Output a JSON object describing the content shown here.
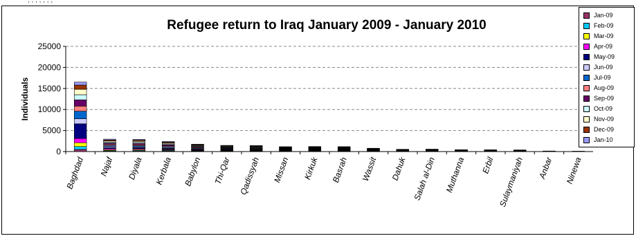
{
  "header_text": ", ,  ,  ,      ,                 ,   ,",
  "chart_data": {
    "type": "bar",
    "stacked": true,
    "title": "Refugee return to Iraq January 2009 - January 2010",
    "ylabel": "Individuals",
    "xlabel": "",
    "ylim": [
      0,
      25000
    ],
    "yticks": [
      0,
      5000,
      10000,
      15000,
      20000,
      25000
    ],
    "grid": true,
    "legend_position": "top-right",
    "categories": [
      "Baghdad",
      "Najaf",
      "Diyala",
      "Kerbala",
      "Babylon",
      "Thi-Qar",
      "Qadissyah",
      "Missan",
      "Kirkuk",
      "Basrah",
      "Wassit",
      "Dahuk",
      "Salah al-Din",
      "Muthanna",
      "Erbil",
      "Sulaymaniyah",
      "Anbar",
      "Ninewa"
    ],
    "series": [
      {
        "name": "Jan-09",
        "color": "#993366",
        "values": [
          500,
          100,
          150,
          120,
          100,
          100,
          80,
          60,
          80,
          60,
          60,
          30,
          40,
          30,
          30,
          20,
          10,
          5
        ]
      },
      {
        "name": "Feb-09",
        "color": "#00CCFF",
        "values": [
          700,
          150,
          150,
          150,
          100,
          100,
          80,
          60,
          80,
          70,
          50,
          30,
          40,
          30,
          30,
          30,
          10,
          5
        ]
      },
      {
        "name": "Mar-09",
        "color": "#FFFF00",
        "values": [
          900,
          200,
          200,
          150,
          120,
          100,
          100,
          80,
          80,
          80,
          60,
          40,
          40,
          30,
          30,
          30,
          10,
          5
        ]
      },
      {
        "name": "Apr-09",
        "color": "#FF00FF",
        "values": [
          1000,
          250,
          200,
          150,
          120,
          100,
          100,
          80,
          80,
          80,
          60,
          40,
          40,
          30,
          30,
          30,
          10,
          5
        ]
      },
      {
        "name": "May-09",
        "color": "#000080",
        "values": [
          3500,
          250,
          250,
          200,
          150,
          120,
          120,
          100,
          100,
          100,
          80,
          40,
          50,
          40,
          30,
          30,
          10,
          5
        ]
      },
      {
        "name": "Jun-09",
        "color": "#CCCCFF",
        "values": [
          1200,
          250,
          200,
          200,
          150,
          120,
          120,
          100,
          100,
          100,
          60,
          50,
          50,
          40,
          30,
          30,
          10,
          5
        ]
      },
      {
        "name": "Jul-09",
        "color": "#0066CC",
        "values": [
          1800,
          250,
          250,
          200,
          150,
          120,
          120,
          100,
          100,
          100,
          60,
          50,
          50,
          40,
          40,
          30,
          10,
          5
        ]
      },
      {
        "name": "Aug-09",
        "color": "#FF8080",
        "values": [
          1200,
          250,
          250,
          200,
          150,
          120,
          120,
          100,
          100,
          100,
          60,
          50,
          50,
          40,
          40,
          30,
          10,
          5
        ]
      },
      {
        "name": "Sep-09",
        "color": "#660066",
        "values": [
          1500,
          300,
          300,
          250,
          150,
          120,
          120,
          100,
          100,
          100,
          60,
          50,
          50,
          40,
          40,
          40,
          10,
          5
        ]
      },
      {
        "name": "Oct-09",
        "color": "#CCFFFF",
        "values": [
          1200,
          250,
          250,
          200,
          150,
          120,
          120,
          100,
          100,
          100,
          60,
          40,
          40,
          30,
          30,
          30,
          10,
          5
        ]
      },
      {
        "name": "Nov-09",
        "color": "#FFFFCC",
        "values": [
          1300,
          250,
          250,
          200,
          150,
          120,
          120,
          100,
          100,
          100,
          60,
          40,
          40,
          30,
          30,
          30,
          10,
          5
        ]
      },
      {
        "name": "Dec-09",
        "color": "#993300",
        "values": [
          1000,
          250,
          250,
          200,
          150,
          120,
          120,
          100,
          100,
          100,
          60,
          40,
          40,
          30,
          30,
          30,
          10,
          5
        ]
      },
      {
        "name": "Jan-10",
        "color": "#9999FF",
        "values": [
          700,
          200,
          200,
          180,
          110,
          110,
          100,
          80,
          80,
          80,
          60,
          40,
          40,
          30,
          30,
          30,
          10,
          5
        ]
      }
    ]
  }
}
